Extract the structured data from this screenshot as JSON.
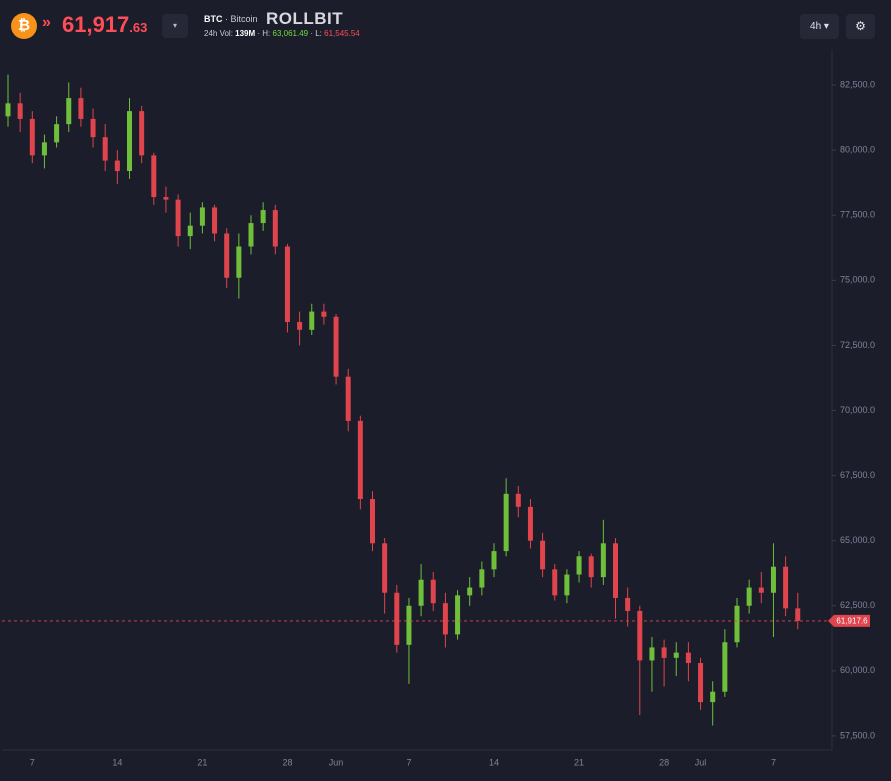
{
  "header": {
    "price_int": "61,917",
    "price_dec": ".63",
    "symbol": "BTC",
    "name": "· Bitcoin",
    "brand": "ROLLBIT",
    "vol_label": "24h Vol:",
    "vol": "139M",
    "high_label": "H:",
    "high": "63,061.49",
    "low_label": "L:",
    "low": "61,545.54",
    "interval": "4h"
  },
  "chart_data": {
    "type": "candlestick",
    "categories": [
      null,
      null,
      "7",
      null,
      null,
      null,
      null,
      null,
      null,
      "14",
      null,
      null,
      null,
      null,
      null,
      null,
      "21",
      null,
      null,
      null,
      null,
      null,
      null,
      "28",
      null,
      null,
      null,
      "Jun",
      null,
      null,
      null,
      null,
      null,
      "7",
      null,
      null,
      null,
      null,
      null,
      null,
      "14",
      null,
      null,
      null,
      null,
      null,
      null,
      "21",
      null,
      null,
      null,
      null,
      null,
      null,
      "28",
      null,
      null,
      "Jul",
      null,
      null,
      null,
      null,
      null,
      "7",
      null,
      null
    ],
    "series": [
      {
        "up_color": "#6fbf3a",
        "down_color": "#e0444c",
        "open": [
          81300,
          81800,
          81200,
          79800,
          80300,
          81000,
          82000,
          81200,
          80500,
          79600,
          79200,
          81500,
          79800,
          78200,
          78100,
          76700,
          77100,
          77800,
          76800,
          75100,
          76300,
          77200,
          77700,
          76300,
          73400,
          73100,
          73800,
          73600,
          71300,
          69600,
          66600,
          64900,
          63000,
          61000,
          62500,
          63500,
          62600,
          61400,
          62900,
          63200,
          63900,
          64600,
          66800,
          66300,
          65000,
          63900,
          62900,
          63700,
          64400,
          63600,
          64900,
          62800,
          62300,
          60400,
          60900,
          60500,
          60700,
          60300,
          58800,
          59200,
          61100,
          62500,
          63200,
          63000,
          64000,
          62400
        ],
        "high": [
          82900,
          82200,
          81500,
          80600,
          81300,
          82600,
          82400,
          81600,
          81000,
          80000,
          82000,
          81700,
          79900,
          78600,
          78300,
          77600,
          78000,
          77900,
          77000,
          76800,
          77500,
          78000,
          77900,
          76400,
          73800,
          74100,
          74100,
          73700,
          71600,
          69800,
          66900,
          65100,
          63300,
          62800,
          64100,
          63800,
          63000,
          63100,
          63600,
          64200,
          64900,
          67400,
          67100,
          66600,
          65300,
          64100,
          63900,
          64600,
          64500,
          65800,
          65100,
          63200,
          62500,
          61300,
          61200,
          61100,
          61100,
          60500,
          59600,
          61600,
          62800,
          63500,
          63800,
          64900,
          64400,
          63000
        ],
        "low": [
          80900,
          80700,
          79500,
          79300,
          80100,
          80700,
          80900,
          80100,
          79200,
          78700,
          78900,
          79500,
          77900,
          77600,
          76300,
          76200,
          76800,
          76500,
          74700,
          74300,
          76000,
          76900,
          76000,
          73000,
          72500,
          72900,
          73300,
          71000,
          69200,
          66200,
          64600,
          62200,
          60700,
          59500,
          62100,
          62300,
          60900,
          61200,
          62500,
          62900,
          63600,
          64400,
          65900,
          64700,
          63600,
          62700,
          62600,
          63400,
          63200,
          63300,
          62000,
          61700,
          58300,
          59200,
          59400,
          59800,
          59600,
          58500,
          57900,
          59000,
          60900,
          62200,
          62600,
          61300,
          62100,
          61600
        ],
        "close": [
          81800,
          81200,
          79800,
          80300,
          81000,
          82000,
          81200,
          80500,
          79600,
          79200,
          81500,
          79800,
          78200,
          78100,
          76700,
          77100,
          77800,
          76800,
          75100,
          76300,
          77200,
          77700,
          76300,
          73400,
          73100,
          73800,
          73600,
          71300,
          69600,
          66600,
          64900,
          63000,
          61000,
          62500,
          63500,
          62600,
          61400,
          62900,
          63200,
          63900,
          64600,
          66800,
          66300,
          65000,
          63900,
          62900,
          63700,
          64400,
          63600,
          64900,
          62800,
          62300,
          60400,
          60900,
          60500,
          60700,
          60300,
          58800,
          59200,
          61100,
          62500,
          63200,
          63000,
          64000,
          62400,
          61917.6
        ]
      }
    ],
    "last_price": {
      "value": 61917.6,
      "label": "61,917.6"
    },
    "ylim": [
      56960,
      84040
    ],
    "yticks": [
      {
        "value": 57500,
        "label": "57,500.0"
      },
      {
        "value": 60000,
        "label": "60,000.0"
      },
      {
        "value": 62500,
        "label": "62,500.0"
      },
      {
        "value": 65000,
        "label": "65,000.0"
      },
      {
        "value": 67500,
        "label": "67,500.0"
      },
      {
        "value": 70000,
        "label": "70,000.0"
      },
      {
        "value": 72500,
        "label": "72,500.0"
      },
      {
        "value": 75000,
        "label": "75,000.0"
      },
      {
        "value": 77500,
        "label": "77,500.0"
      },
      {
        "value": 80000,
        "label": "80,000.0"
      },
      {
        "value": 82500,
        "label": "82,500.0"
      }
    ]
  }
}
